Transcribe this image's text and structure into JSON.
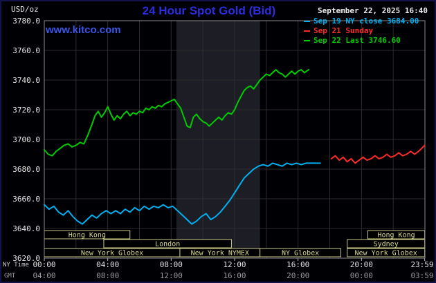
{
  "header": {
    "units_label": "USD/oz",
    "title": "24 Hour Spot Gold (Bid)",
    "datetime": "September 22, 2025 16:40",
    "watermark": "www.kitco.com"
  },
  "axes": {
    "ny_time_label": "NY Time",
    "gmt_label": "GMT",
    "y_ticks": [
      "3780.0",
      "3760.0",
      "3740.0",
      "3720.0",
      "3700.0",
      "3680.0",
      "3660.0",
      "3640.0",
      "3620.0"
    ],
    "x_ticks": [
      "00:00",
      "04:00",
      "08:00",
      "12:00",
      "16:00",
      "20:00",
      "23:59"
    ],
    "gmt_ticks": [
      "04:00",
      "08:00",
      "12:00",
      "16:00",
      "20:00",
      "00:00",
      "03:59"
    ]
  },
  "legend": [
    {
      "label": "Sep 19 NY close 3684.00",
      "color": "#00b0f0"
    },
    {
      "label": "Sep 21 Sunday",
      "color": "#ff2a2a"
    },
    {
      "label": "Sep 22 Last 3746.60",
      "color": "#00cc00"
    }
  ],
  "chart_data": {
    "type": "line",
    "title": "24 Hour Spot Gold (Bid)",
    "ylabel": "USD/oz",
    "ylim": [
      3620,
      3780
    ],
    "y_step": 20,
    "x_unit": "hours_ny_time",
    "xlim": [
      0,
      23.983
    ],
    "x_tick_hours": [
      0,
      4,
      8,
      12,
      16,
      20,
      23.983
    ],
    "grid": true,
    "key_values": {
      "sep19_ny_close": 3684.0,
      "sep22_last": 3746.6
    },
    "nymex_band": {
      "start": 8.33,
      "end": 13.6
    },
    "colors": {
      "grid": "#2d2d2d",
      "plot_border": "#8a8a8a",
      "band": "#1d1d26",
      "session_box": "#c9c98a",
      "session_text": "#d9d98f",
      "tick": "#bbbbbb"
    },
    "series": [
      {
        "name": "Sep 19 NY close",
        "color": "#00b0f0",
        "points": [
          [
            0,
            3656
          ],
          [
            0.3,
            3653
          ],
          [
            0.6,
            3655
          ],
          [
            0.9,
            3651
          ],
          [
            1.2,
            3649
          ],
          [
            1.5,
            3652
          ],
          [
            1.8,
            3648
          ],
          [
            2.1,
            3645
          ],
          [
            2.4,
            3643
          ],
          [
            2.7,
            3646
          ],
          [
            3,
            3649
          ],
          [
            3.3,
            3647
          ],
          [
            3.6,
            3650
          ],
          [
            3.9,
            3652
          ],
          [
            4.2,
            3650
          ],
          [
            4.5,
            3652
          ],
          [
            4.8,
            3650
          ],
          [
            5.1,
            3653
          ],
          [
            5.4,
            3651
          ],
          [
            5.7,
            3654
          ],
          [
            6,
            3652
          ],
          [
            6.3,
            3655
          ],
          [
            6.6,
            3653
          ],
          [
            6.9,
            3655
          ],
          [
            7.2,
            3654
          ],
          [
            7.5,
            3656
          ],
          [
            7.8,
            3654
          ],
          [
            8.1,
            3655
          ],
          [
            8.4,
            3652
          ],
          [
            8.7,
            3649
          ],
          [
            9,
            3646
          ],
          [
            9.3,
            3643
          ],
          [
            9.6,
            3645
          ],
          [
            9.9,
            3648
          ],
          [
            10.2,
            3650
          ],
          [
            10.5,
            3646
          ],
          [
            10.8,
            3648
          ],
          [
            11.1,
            3651
          ],
          [
            11.4,
            3655
          ],
          [
            11.7,
            3659
          ],
          [
            12,
            3664
          ],
          [
            12.3,
            3669
          ],
          [
            12.6,
            3674
          ],
          [
            12.9,
            3677
          ],
          [
            13.2,
            3680
          ],
          [
            13.5,
            3682
          ],
          [
            13.8,
            3683
          ],
          [
            14.1,
            3682
          ],
          [
            14.4,
            3684
          ],
          [
            14.7,
            3683
          ],
          [
            15,
            3682
          ],
          [
            15.3,
            3684
          ],
          [
            15.6,
            3683
          ],
          [
            15.9,
            3684
          ],
          [
            16.2,
            3683
          ],
          [
            16.5,
            3684
          ],
          [
            16.9,
            3684
          ],
          [
            17.4,
            3684
          ]
        ]
      },
      {
        "name": "Sep 21 Sunday",
        "color": "#ff2a2a",
        "points": [
          [
            18.1,
            3687
          ],
          [
            18.35,
            3689
          ],
          [
            18.6,
            3686
          ],
          [
            18.85,
            3688
          ],
          [
            19.1,
            3685
          ],
          [
            19.35,
            3687
          ],
          [
            19.6,
            3684
          ],
          [
            19.85,
            3686
          ],
          [
            20.1,
            3688
          ],
          [
            20.35,
            3686
          ],
          [
            20.6,
            3687
          ],
          [
            20.85,
            3689
          ],
          [
            21.1,
            3687
          ],
          [
            21.35,
            3688
          ],
          [
            21.6,
            3690
          ],
          [
            21.85,
            3688
          ],
          [
            22.1,
            3689
          ],
          [
            22.35,
            3691
          ],
          [
            22.6,
            3689
          ],
          [
            22.85,
            3690
          ],
          [
            23.1,
            3692
          ],
          [
            23.35,
            3690
          ],
          [
            23.6,
            3692
          ],
          [
            23.8,
            3694
          ],
          [
            23.983,
            3696
          ]
        ]
      },
      {
        "name": "Sep 22 Last",
        "color": "#00cc00",
        "points": [
          [
            0,
            3693
          ],
          [
            0.25,
            3690
          ],
          [
            0.5,
            3689
          ],
          [
            0.75,
            3692
          ],
          [
            1,
            3694
          ],
          [
            1.25,
            3696
          ],
          [
            1.5,
            3697
          ],
          [
            1.75,
            3695
          ],
          [
            2,
            3696
          ],
          [
            2.25,
            3698
          ],
          [
            2.5,
            3697
          ],
          [
            2.75,
            3703
          ],
          [
            3,
            3710
          ],
          [
            3.2,
            3716
          ],
          [
            3.4,
            3719
          ],
          [
            3.6,
            3715
          ],
          [
            3.8,
            3718
          ],
          [
            4,
            3722
          ],
          [
            4.2,
            3717
          ],
          [
            4.4,
            3713
          ],
          [
            4.6,
            3716
          ],
          [
            4.8,
            3714
          ],
          [
            5,
            3717
          ],
          [
            5.2,
            3719
          ],
          [
            5.4,
            3716
          ],
          [
            5.6,
            3718
          ],
          [
            5.8,
            3717
          ],
          [
            6,
            3719
          ],
          [
            6.2,
            3718
          ],
          [
            6.4,
            3721
          ],
          [
            6.6,
            3720
          ],
          [
            6.8,
            3722
          ],
          [
            7,
            3721
          ],
          [
            7.2,
            3723
          ],
          [
            7.4,
            3722
          ],
          [
            7.6,
            3724
          ],
          [
            7.8,
            3725
          ],
          [
            8,
            3726
          ],
          [
            8.2,
            3727
          ],
          [
            8.4,
            3724
          ],
          [
            8.6,
            3721
          ],
          [
            8.8,
            3715
          ],
          [
            9,
            3709
          ],
          [
            9.2,
            3708
          ],
          [
            9.4,
            3715
          ],
          [
            9.6,
            3717
          ],
          [
            9.8,
            3714
          ],
          [
            10,
            3712
          ],
          [
            10.2,
            3711
          ],
          [
            10.4,
            3709
          ],
          [
            10.6,
            3711
          ],
          [
            10.8,
            3713
          ],
          [
            11,
            3715
          ],
          [
            11.2,
            3713
          ],
          [
            11.4,
            3716
          ],
          [
            11.6,
            3718
          ],
          [
            11.8,
            3717
          ],
          [
            12,
            3720
          ],
          [
            12.2,
            3725
          ],
          [
            12.4,
            3729
          ],
          [
            12.6,
            3733
          ],
          [
            12.8,
            3735
          ],
          [
            13,
            3736
          ],
          [
            13.2,
            3734
          ],
          [
            13.4,
            3737
          ],
          [
            13.6,
            3740
          ],
          [
            13.8,
            3742
          ],
          [
            14,
            3744
          ],
          [
            14.2,
            3743
          ],
          [
            14.4,
            3745
          ],
          [
            14.6,
            3747
          ],
          [
            14.8,
            3745
          ],
          [
            15,
            3744
          ],
          [
            15.2,
            3742
          ],
          [
            15.4,
            3744
          ],
          [
            15.6,
            3746
          ],
          [
            15.8,
            3744
          ],
          [
            16,
            3746
          ],
          [
            16.2,
            3747
          ],
          [
            16.4,
            3745
          ],
          [
            16.67,
            3747
          ]
        ]
      }
    ],
    "sessions": [
      {
        "label": "Hong Kong",
        "row": 0,
        "start": 0,
        "end": 5.4
      },
      {
        "label": "Hong Kong",
        "row": 0,
        "start": 20.4,
        "end": 23.983
      },
      {
        "label": "London",
        "row": 1,
        "start": 3.75,
        "end": 11.8
      },
      {
        "label": "Sydney",
        "row": 1,
        "start": 19.1,
        "end": 23.983
      },
      {
        "label": "New York Globex",
        "row": 2,
        "start": 0,
        "end": 8.55
      },
      {
        "label": "New York NYMEX",
        "row": 2,
        "start": 8.55,
        "end": 13.6
      },
      {
        "label": "NY Globex",
        "row": 2,
        "start": 13.6,
        "end": 18.7
      },
      {
        "label": "New York Globex",
        "row": 2,
        "start": 19.1,
        "end": 23.983
      }
    ]
  }
}
